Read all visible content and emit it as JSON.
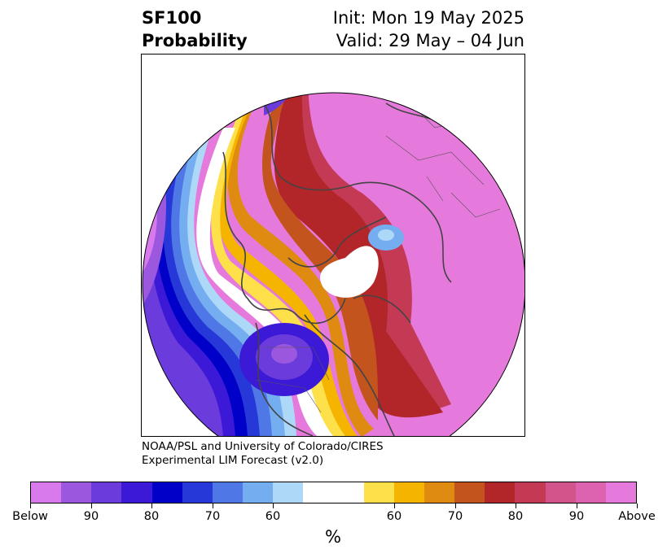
{
  "header": {
    "variable": "SF100",
    "product": "Probability",
    "init": "Init: Mon 19 May 2025",
    "valid": "Valid: 29 May – 04 Jun"
  },
  "credit": {
    "line1": "NOAA/PSL and University of Colorado/CIRES",
    "line2": "Experimental LIM Forecast (v2.0)"
  },
  "colorbar": {
    "unit_label": "%",
    "colors": [
      "#d879ec",
      "#9b58df",
      "#6b3bdc",
      "#3b19d6",
      "#0000c8",
      "#2638d8",
      "#4f78e6",
      "#75aef0",
      "#aed8f7",
      "#ffffff",
      "#fde04a",
      "#f4b400",
      "#df8a10",
      "#c4541e",
      "#b2262a",
      "#c43a55",
      "#d1548a",
      "#dd62b0",
      "#e679dc"
    ],
    "tick_labels": [
      "Below",
      "90",
      "80",
      "70",
      "60",
      "60",
      "70",
      "80",
      "90",
      "Above"
    ]
  },
  "map": {
    "projection": "north-polar-stereographic",
    "above_color": "#e679dc",
    "below_color": "#d879ec"
  }
}
